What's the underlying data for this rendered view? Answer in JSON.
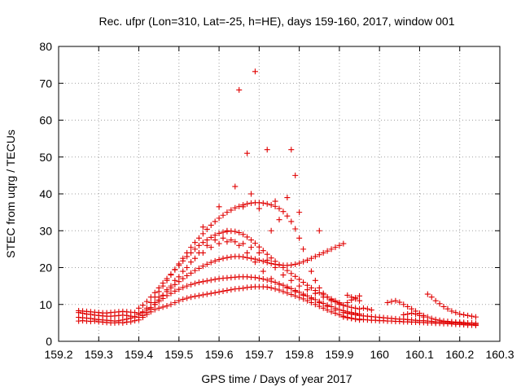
{
  "chart_data": {
    "type": "scatter",
    "title": "Rec. ufpr (Lon=310, Lat=-25, h=HE), days 159-160, 2017, window 001",
    "xlabel": "GPS time / Days of year 2017",
    "ylabel": "STEC from uqrg / TECUs",
    "xlim": [
      159.2,
      160.3
    ],
    "ylim": [
      0,
      80
    ],
    "xticks": [
      "159.2",
      "159.3",
      "159.4",
      "159.5",
      "159.6",
      "159.7",
      "159.8",
      "159.9",
      "160",
      "160.1",
      "160.2",
      "160.3"
    ],
    "yticks": [
      "0",
      "10",
      "20",
      "30",
      "40",
      "50",
      "60",
      "70",
      "80"
    ],
    "grid": true,
    "marker": "plus",
    "color": "#e00000",
    "series": [
      {
        "x": [
          159.25,
          159.26,
          159.27,
          159.28,
          159.29,
          159.3,
          159.31,
          159.32,
          159.33,
          159.34,
          159.35,
          159.36,
          159.37,
          159.38,
          159.39,
          159.4,
          159.41,
          159.42,
          159.43,
          159.44,
          159.45,
          159.46,
          159.47,
          159.48,
          159.49,
          159.5,
          159.51,
          159.52,
          159.53,
          159.54,
          159.55,
          159.56,
          159.57,
          159.58,
          159.59,
          159.6,
          159.61,
          159.62,
          159.63,
          159.64,
          159.65,
          159.66,
          159.67,
          159.68,
          159.69,
          159.7,
          159.71,
          159.72,
          159.73,
          159.74,
          159.75,
          159.76,
          159.77,
          159.78,
          159.79,
          159.8,
          159.81,
          159.82,
          159.83,
          159.84,
          159.85,
          159.86,
          159.87,
          159.88,
          159.89,
          159.9,
          159.91,
          159.92,
          159.93,
          159.94,
          159.95
        ],
        "y": [
          5.5,
          5.6,
          5.5,
          5.4,
          5.5,
          5.3,
          5.2,
          5.1,
          5.0,
          5.0,
          5.1,
          5.0,
          5.2,
          5.3,
          5.6,
          5.8,
          6.5,
          7.3,
          8.0,
          8.6,
          9.0,
          9.3,
          9.6,
          10.0,
          10.5,
          11.0,
          11.4,
          11.7,
          12.0,
          12.2,
          12.4,
          12.6,
          12.8,
          13.0,
          13.2,
          13.4,
          13.6,
          13.8,
          14.0,
          14.2,
          14.3,
          14.4,
          14.6,
          14.7,
          14.8,
          14.8,
          14.8,
          14.7,
          14.5,
          14.2,
          13.9,
          13.5,
          13.1,
          12.7,
          12.3,
          11.9,
          11.5,
          11.0,
          10.5,
          10.0,
          9.5,
          9.0,
          8.5,
          8.0,
          7.6,
          7.2,
          6.8,
          6.5,
          6.2,
          6.0,
          5.8
        ]
      },
      {
        "x": [
          159.25,
          159.26,
          159.27,
          159.28,
          159.29,
          159.3,
          159.31,
          159.32,
          159.33,
          159.34,
          159.35,
          159.36,
          159.37,
          159.38,
          159.39,
          159.4,
          159.41,
          159.42,
          159.43,
          159.44,
          159.45,
          159.46,
          159.47,
          159.48,
          159.49,
          159.5,
          159.51,
          159.52,
          159.53,
          159.54,
          159.55,
          159.56,
          159.57,
          159.58,
          159.59,
          159.6,
          159.61,
          159.62,
          159.63,
          159.64,
          159.65,
          159.66,
          159.67,
          159.68,
          159.69,
          159.7,
          159.71,
          159.72,
          159.73,
          159.74,
          159.75,
          159.76,
          159.77,
          159.78,
          159.79,
          159.8,
          159.81,
          159.82,
          159.83,
          159.84,
          159.85,
          159.86,
          159.87,
          159.88,
          159.89,
          159.9,
          159.91,
          159.92,
          159.93,
          159.94,
          159.95
        ],
        "y": [
          6.5,
          6.4,
          6.3,
          6.2,
          6.0,
          5.9,
          5.8,
          5.7,
          5.6,
          5.5,
          5.6,
          5.8,
          6.0,
          6.3,
          6.7,
          7.2,
          7.8,
          8.5,
          9.2,
          10.0,
          10.8,
          11.6,
          12.4,
          13.0,
          13.6,
          14.1,
          14.6,
          15.0,
          15.4,
          15.7,
          16.0,
          16.2,
          16.4,
          16.6,
          16.8,
          17.0,
          17.1,
          17.2,
          17.3,
          17.4,
          17.5,
          17.5,
          17.5,
          17.4,
          17.3,
          17.1,
          16.9,
          16.6,
          16.3,
          16.0,
          15.6,
          15.2,
          14.8,
          14.3,
          13.8,
          13.3,
          12.8,
          12.3,
          11.8,
          11.3,
          10.8,
          10.3,
          9.8,
          9.4,
          9.0,
          8.6,
          8.3,
          8.0,
          7.8,
          7.6,
          7.4
        ]
      },
      {
        "x": [
          159.25,
          159.26,
          159.27,
          159.28,
          159.29,
          159.3,
          159.31,
          159.32,
          159.33,
          159.34,
          159.35,
          159.36,
          159.37,
          159.38,
          159.39,
          159.4,
          159.41,
          159.42,
          159.43,
          159.44,
          159.45,
          159.46,
          159.47,
          159.48,
          159.49,
          159.5,
          159.51,
          159.52,
          159.53,
          159.54,
          159.55,
          159.56,
          159.57,
          159.58,
          159.59,
          159.6,
          159.61,
          159.62,
          159.63,
          159.64,
          159.65,
          159.66,
          159.67,
          159.68,
          159.69,
          159.7,
          159.71,
          159.72,
          159.73,
          159.74,
          159.75,
          159.76,
          159.77,
          159.78,
          159.79,
          159.8,
          159.81,
          159.82,
          159.83,
          159.84,
          159.85,
          159.86,
          159.87,
          159.88,
          159.89,
          159.9,
          159.91,
          159.92,
          159.93,
          159.94,
          159.95
        ],
        "y": [
          7.8,
          7.6,
          7.4,
          7.3,
          7.1,
          7.0,
          6.9,
          6.8,
          6.8,
          6.9,
          7.0,
          7.1,
          7.0,
          6.8,
          6.6,
          6.5,
          7.0,
          7.8,
          8.8,
          10.0,
          11.2,
          12.4,
          13.5,
          14.5,
          15.4,
          16.2,
          17.0,
          17.8,
          18.5,
          19.2,
          19.8,
          20.4,
          20.9,
          21.4,
          21.8,
          22.2,
          22.5,
          22.7,
          22.9,
          23.0,
          23.0,
          22.9,
          22.7,
          22.5,
          22.3,
          22.0,
          21.7,
          21.4,
          21.1,
          20.9,
          20.7,
          20.6,
          20.6,
          20.7,
          20.9,
          21.2,
          21.6,
          22.0,
          22.5,
          23.0,
          23.5,
          24.0,
          24.5,
          25.0,
          25.5,
          26.0,
          26.5,
          12.5,
          12.0,
          11.5,
          11.0
        ]
      },
      {
        "x": [
          159.25,
          159.26,
          159.27,
          159.28,
          159.29,
          159.3,
          159.31,
          159.32,
          159.33,
          159.34,
          159.35,
          159.36,
          159.37,
          159.38,
          159.39,
          159.4,
          159.41,
          159.42,
          159.43,
          159.44,
          159.45,
          159.46,
          159.47,
          159.48,
          159.49,
          159.5,
          159.51,
          159.52,
          159.53,
          159.54,
          159.55,
          159.56,
          159.57,
          159.58,
          159.59,
          159.6,
          159.61,
          159.62,
          159.63,
          159.64,
          159.65,
          159.66,
          159.67,
          159.68,
          159.69,
          159.7,
          159.71,
          159.72,
          159.73,
          159.74,
          159.75,
          159.76,
          159.77,
          159.78,
          159.79,
          159.8,
          159.81,
          159.82,
          159.83,
          159.84,
          159.85,
          159.86,
          159.87,
          159.88,
          159.89,
          159.9,
          159.91,
          159.92,
          159.93,
          159.94,
          159.95
        ],
        "y": [
          8.3,
          8.2,
          8.1,
          8.0,
          7.9,
          7.8,
          7.7,
          7.7,
          7.8,
          7.9,
          8.0,
          8.1,
          8.0,
          7.9,
          7.8,
          7.6,
          8.0,
          9.0,
          10.5,
          12.0,
          13.5,
          15.0,
          16.5,
          18.0,
          19.5,
          21.0,
          22.5,
          24.0,
          25.5,
          26.8,
          28.0,
          29.2,
          30.4,
          31.5,
          32.5,
          33.4,
          34.2,
          35.0,
          35.6,
          36.2,
          36.6,
          37.0,
          37.3,
          37.5,
          37.6,
          37.6,
          37.5,
          37.3,
          37.0,
          36.6,
          36.0,
          35.2,
          34.0,
          32.5,
          30.5,
          28.0,
          25.0,
          22.0,
          19.0,
          16.5,
          14.5,
          13.0,
          12.0,
          11.3,
          10.7,
          10.2,
          9.8,
          9.5,
          9.2,
          9.0,
          8.8
        ]
      },
      {
        "x": [
          159.4,
          159.41,
          159.42,
          159.43,
          159.44,
          159.45,
          159.46,
          159.47,
          159.48,
          159.49,
          159.5,
          159.51,
          159.52,
          159.53,
          159.54,
          159.55,
          159.56,
          159.57,
          159.58,
          159.59,
          159.6,
          159.61,
          159.62,
          159.63,
          159.64,
          159.65,
          159.66,
          159.67,
          159.68,
          159.69,
          159.7,
          159.71,
          159.72,
          159.73,
          159.74,
          159.75,
          159.76,
          159.77,
          159.78,
          159.79,
          159.8,
          159.81,
          159.82,
          159.83,
          159.84,
          159.85,
          159.86,
          159.87,
          159.88,
          159.89,
          159.9
        ],
        "y": [
          9.0,
          9.8,
          10.8,
          12.0,
          13.2,
          14.5,
          15.8,
          17.0,
          18.2,
          19.4,
          20.6,
          21.8,
          23.0,
          24.0,
          25.0,
          26.0,
          26.8,
          27.5,
          28.2,
          28.8,
          29.3,
          29.6,
          29.8,
          29.9,
          29.8,
          29.5,
          29.0,
          28.3,
          27.5,
          26.6,
          25.6,
          24.6,
          23.6,
          22.6,
          21.7,
          20.8,
          20.0,
          19.2,
          18.4,
          17.6,
          16.8,
          16.0,
          15.2,
          14.5,
          13.8,
          13.2,
          12.6,
          12.0,
          11.5,
          11.0,
          10.5
        ]
      },
      {
        "x": [
          159.45,
          159.47,
          159.49,
          159.51,
          159.53,
          159.55,
          159.57,
          159.59,
          159.61,
          159.63,
          159.65,
          159.67,
          159.69,
          159.71,
          159.73,
          159.75,
          159.77,
          159.79,
          159.81,
          159.83,
          159.85,
          159.87,
          159.89
        ],
        "y": [
          12.0,
          14.0,
          16.5,
          19.0,
          21.5,
          24.0,
          26.0,
          27.5,
          28.0,
          27.5,
          26.0,
          24.0,
          21.5,
          19.0,
          17.0,
          15.5,
          14.5,
          13.5,
          12.5,
          11.5,
          10.5,
          9.5,
          8.5
        ]
      },
      {
        "x": [
          159.44,
          159.46,
          159.48,
          159.5,
          159.52,
          159.54,
          159.56,
          159.58,
          159.6,
          159.62,
          159.64,
          159.66,
          159.68,
          159.7,
          159.72,
          159.74,
          159.76,
          159.78,
          159.8,
          159.82,
          159.84,
          159.86,
          159.88,
          159.9
        ],
        "y": [
          10.5,
          12.5,
          15.0,
          17.5,
          20.0,
          22.5,
          24.0,
          25.5,
          26.5,
          27.0,
          27.0,
          26.5,
          25.5,
          24.0,
          22.0,
          20.0,
          18.0,
          16.5,
          15.0,
          14.0,
          13.0,
          12.0,
          11.0,
          10.0
        ]
      },
      {
        "x": [
          159.91,
          159.92,
          159.93,
          159.94,
          159.95,
          159.96,
          159.97,
          159.98,
          159.99,
          160.0,
          160.01,
          160.02,
          160.03,
          160.04,
          160.05,
          160.06,
          160.07,
          160.08,
          160.09,
          160.1,
          160.11,
          160.12,
          160.13,
          160.14,
          160.15,
          160.16,
          160.17,
          160.18,
          160.19,
          160.2,
          160.21,
          160.22,
          160.23,
          160.24
        ],
        "y": [
          6.6,
          6.4,
          6.3,
          6.1,
          6.0,
          5.9,
          5.8,
          5.7,
          5.7,
          5.6,
          5.6,
          5.5,
          5.5,
          5.4,
          5.4,
          5.3,
          5.3,
          5.2,
          5.2,
          5.1,
          5.1,
          5.0,
          5.0,
          4.9,
          4.9,
          4.8,
          4.8,
          4.7,
          4.6,
          4.6,
          4.5,
          4.4,
          4.4,
          4.3
        ]
      },
      {
        "x": [
          159.91,
          159.92,
          159.93,
          159.94,
          159.95,
          159.96,
          159.97,
          159.98,
          159.99,
          160.0,
          160.01,
          160.02,
          160.03,
          160.04,
          160.05,
          160.06,
          160.07,
          160.08,
          160.09,
          160.1,
          160.11,
          160.12,
          160.13,
          160.14,
          160.15,
          160.16,
          160.17,
          160.18,
          160.19,
          160.2,
          160.21,
          160.22,
          160.23,
          160.24
        ],
        "y": [
          7.8,
          7.6,
          7.4,
          7.2,
          7.0,
          6.9,
          6.8,
          6.7,
          6.6,
          6.5,
          6.4,
          6.3,
          6.2,
          6.1,
          6.0,
          6.0,
          5.9,
          5.8,
          5.7,
          5.6,
          5.6,
          5.5,
          5.4,
          5.3,
          5.3,
          5.2,
          5.1,
          5.0,
          5.0,
          4.9,
          4.8,
          4.7,
          4.6,
          4.6
        ]
      },
      {
        "x": [
          159.91,
          159.92,
          159.93,
          159.94,
          159.95,
          159.96,
          159.97,
          159.98,
          160.02,
          160.03,
          160.04,
          160.05,
          160.06,
          160.07,
          160.08,
          160.09,
          160.1,
          160.11,
          160.12,
          160.13,
          160.14,
          160.15,
          160.16,
          160.17,
          160.18,
          160.19,
          160.2,
          160.21,
          160.22,
          160.23,
          160.24
        ],
        "y": [
          9.8,
          10.5,
          11.2,
          11.8,
          12.3,
          9.0,
          8.8,
          8.5,
          10.5,
          10.8,
          11.0,
          10.6,
          10.0,
          9.4,
          8.8,
          8.2,
          7.6,
          7.0,
          6.6,
          6.2,
          5.9,
          5.7,
          5.5,
          5.4,
          5.3,
          5.2,
          5.2,
          5.1,
          5.0,
          5.0,
          4.9
        ]
      },
      {
        "x": [
          160.06,
          160.07,
          160.08,
          160.09,
          160.1,
          160.11,
          160.12,
          160.13,
          160.14,
          160.15,
          160.16,
          160.17,
          160.18,
          160.19,
          160.2,
          160.21,
          160.22,
          160.23,
          160.24
        ],
        "y": [
          7.2,
          7.4,
          7.6,
          7.4,
          7.0,
          6.6,
          12.8,
          12.0,
          11.0,
          10.2,
          9.4,
          8.8,
          8.2,
          7.8,
          7.4,
          7.2,
          7.0,
          6.8,
          6.6
        ]
      },
      {
        "x": [
          159.56,
          159.6,
          159.62,
          159.64,
          159.65,
          159.66,
          159.67,
          159.68,
          159.69,
          159.7,
          159.72,
          159.73,
          159.74,
          159.75,
          159.77,
          159.78,
          159.79,
          159.8,
          159.85
        ],
        "y": [
          31.0,
          36.5,
          30.0,
          42.0,
          68.2,
          36.5,
          51.0,
          40.0,
          73.2,
          36.0,
          52.0,
          30.0,
          38.0,
          33.0,
          39.0,
          52.0,
          45.0,
          35.0,
          30.0
        ]
      }
    ]
  }
}
